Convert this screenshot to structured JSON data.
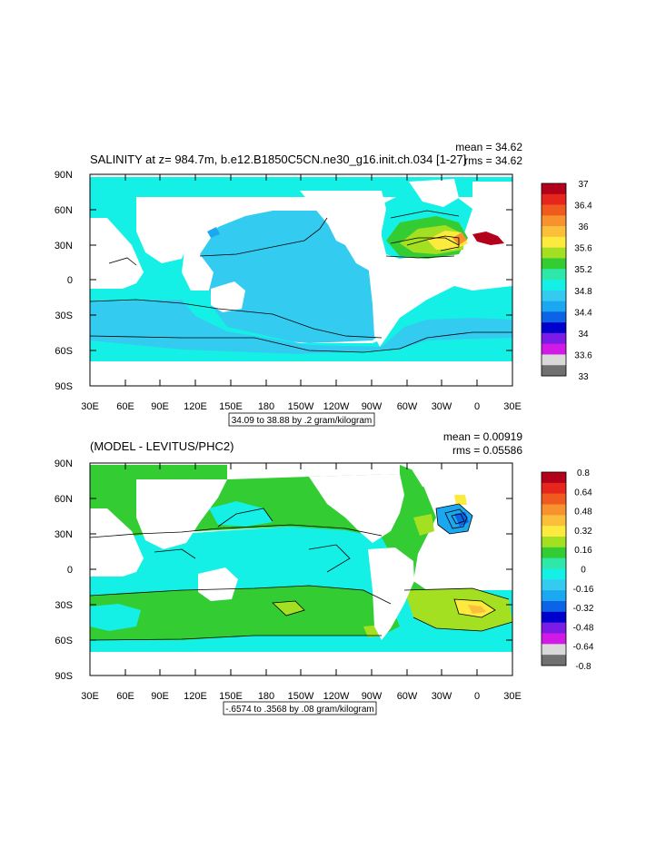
{
  "panels": [
    {
      "title": "SALINITY at z= 984.7m, b.e12.B1850C5CN.ne30_g16.init.ch.034 [1-27]",
      "stat_mean": "mean = 34.62",
      "stat_rms": "rms = 34.62",
      "lat_labels": [
        "90N",
        "60N",
        "30N",
        "0",
        "30S",
        "60S",
        "90S"
      ],
      "lon_labels": [
        "30E",
        "60E",
        "90E",
        "120E",
        "150E",
        "180",
        "150W",
        "120W",
        "90W",
        "60W",
        "30W",
        "0",
        "30E"
      ],
      "contour_info": "34.09 to 38.88 by .2 gram/kilogram",
      "colorbar_labels": [
        "37",
        "36.4",
        "36",
        "35.6",
        "35.2",
        "34.8",
        "34.4",
        "34",
        "33.6",
        "33"
      ],
      "colorbar_colors": [
        "#b3001b",
        "#e6261c",
        "#f05a1e",
        "#f7922f",
        "#fbbf3c",
        "#fcea3e",
        "#a3e022",
        "#33cc33",
        "#2ee8aa",
        "#15f0e6",
        "#33ccf0",
        "#1ca8f0",
        "#0b63e6",
        "#0000cc",
        "#7a1ce6",
        "#d21ae6",
        "#d9d9d9",
        "#707070"
      ]
    },
    {
      "title": "(MODEL - LEVITUS/PHC2)",
      "stat_mean": "mean = 0.00919",
      "stat_rms": "rms = 0.05586",
      "lat_labels": [
        "90N",
        "60N",
        "30N",
        "0",
        "30S",
        "60S",
        "90S"
      ],
      "lon_labels": [
        "30E",
        "60E",
        "90E",
        "120E",
        "150E",
        "180",
        "150W",
        "120W",
        "90W",
        "60W",
        "30W",
        "0",
        "30E"
      ],
      "contour_info": "-.6574 to .3568 by .08 gram/kilogram",
      "colorbar_labels": [
        "0.8",
        "0.64",
        "0.48",
        "0.32",
        "0.16",
        "0",
        "-0.16",
        "-0.32",
        "-0.48",
        "-0.64",
        "-0.8"
      ],
      "colorbar_colors": [
        "#b3001b",
        "#e6261c",
        "#f05a1e",
        "#f7922f",
        "#fbbf3c",
        "#fcea3e",
        "#a3e022",
        "#33cc33",
        "#2ee8aa",
        "#15f0e6",
        "#33ccf0",
        "#1ca8f0",
        "#0b63e6",
        "#0000cc",
        "#7a1ce6",
        "#d21ae6",
        "#d9d9d9",
        "#707070"
      ]
    }
  ],
  "colors": {
    "ocean_deep": "#33ccf0",
    "ocean_light": "#15f0e6",
    "ocean_mint": "#2ee8aa",
    "green": "#33cc33",
    "yellow_green": "#a3e022",
    "yellow": "#fcea3e",
    "orange": "#f7922f",
    "red": "#b3001b",
    "blue": "#1ca8f0",
    "land": "#ffffff"
  }
}
